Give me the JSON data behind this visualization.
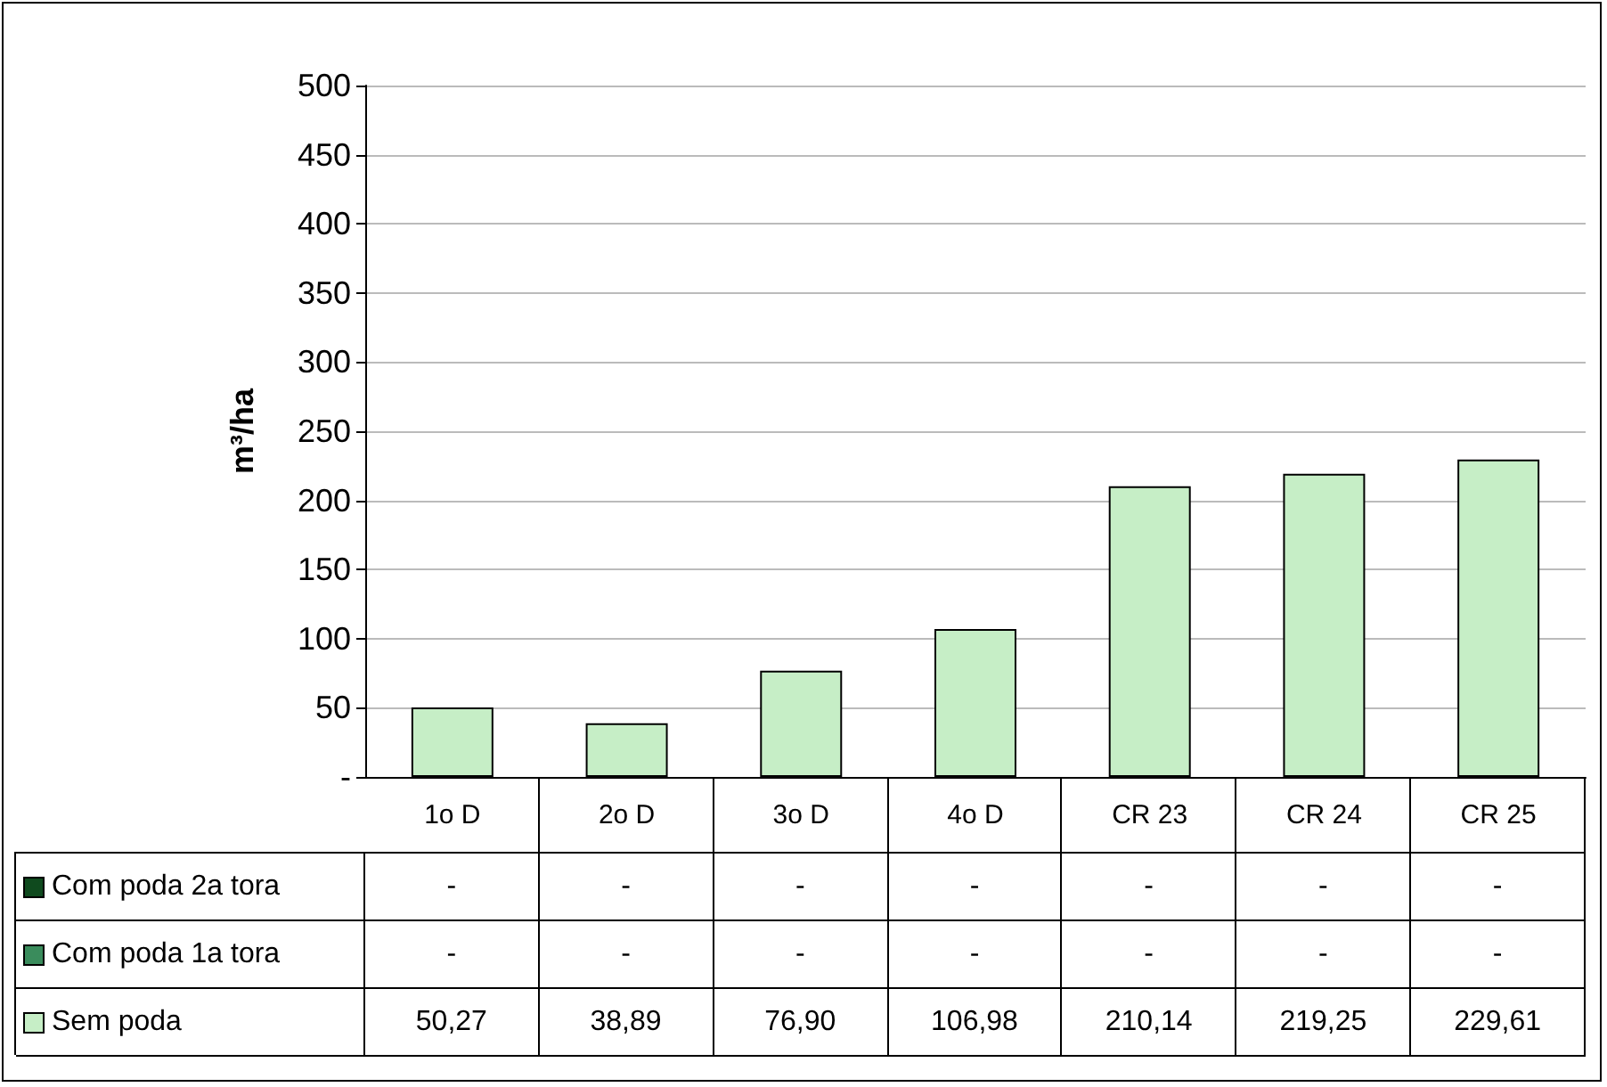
{
  "chart_data": {
    "type": "bar",
    "ylabel": "m³/ha",
    "categories": [
      "1o D",
      "2o D",
      "3o D",
      "4o D",
      "CR 23",
      "CR 24",
      "CR 25"
    ],
    "stacked": true,
    "series": [
      {
        "name": "Sem poda",
        "color": "#c6eec6",
        "values": [
          50.27,
          38.89,
          76.9,
          106.98,
          210.14,
          219.25,
          229.61
        ],
        "value_labels": [
          "50,27",
          "38,89",
          "76,90",
          "106,98",
          "210,14",
          "219,25",
          "229,61"
        ]
      },
      {
        "name": "Com poda 1a tora",
        "color": "#3a8c5c",
        "values": [
          0,
          0,
          0,
          0,
          0,
          0,
          0
        ],
        "value_labels": [
          "-",
          "-",
          "-",
          "-",
          "-",
          "-",
          "-"
        ]
      },
      {
        "name": "Com poda 2a tora",
        "color": "#0f4a1e",
        "values": [
          0,
          0,
          0,
          0,
          0,
          0,
          0
        ],
        "value_labels": [
          "-",
          "-",
          "-",
          "-",
          "-",
          "-",
          "-"
        ]
      }
    ],
    "ylim": [
      0,
      500
    ],
    "yticks": [
      {
        "value": 0,
        "label": "-"
      },
      50,
      100,
      150,
      200,
      250,
      300,
      350,
      400,
      450,
      500
    ],
    "grid": "y",
    "legend": "bottom"
  }
}
